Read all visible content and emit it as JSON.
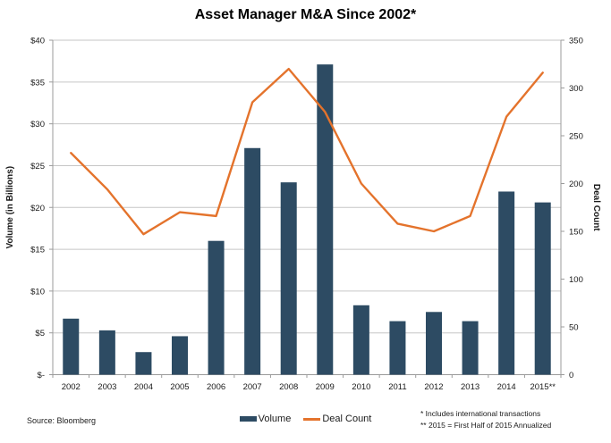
{
  "title": "Asset Manager M&A Since 2002*",
  "colors": {
    "bar": "#2d4b63",
    "line": "#e4732c",
    "grid": "#c6c6c6",
    "axis": "#9b9b9b",
    "text": "#1a1a1a"
  },
  "chart_data": {
    "type": "combo-bar-line",
    "title": "Asset Manager M&A Since 2002*",
    "categories": [
      "2002",
      "2003",
      "2004",
      "2005",
      "2006",
      "2007",
      "2008",
      "2009",
      "2010",
      "2011",
      "2012",
      "2013",
      "2014",
      "2015**"
    ],
    "series": [
      {
        "name": "Volume",
        "type": "bar",
        "axis": "left",
        "values": [
          6.7,
          5.3,
          2.7,
          4.6,
          16.0,
          27.1,
          23.0,
          37.1,
          8.3,
          6.4,
          7.5,
          6.4,
          21.9,
          20.6
        ]
      },
      {
        "name": "Deal Count",
        "type": "line",
        "axis": "right",
        "values": [
          232,
          194,
          147,
          170,
          166,
          285,
          320,
          275,
          200,
          158,
          150,
          166,
          270,
          316
        ]
      }
    ],
    "left_axis": {
      "title": "Volume (in Billions)",
      "min": 0,
      "max": 40,
      "step": 5,
      "tick_labels": [
        "$-",
        "$5",
        "$10",
        "$15",
        "$20",
        "$25",
        "$30",
        "$35",
        "$40"
      ]
    },
    "right_axis": {
      "title": "Deal Count",
      "min": 0,
      "max": 350,
      "step": 50,
      "tick_labels": [
        "0",
        "50",
        "100",
        "150",
        "200",
        "250",
        "300",
        "350"
      ]
    },
    "grid": true,
    "legend_position": "bottom-center"
  },
  "footer": {
    "source": "Source: Bloomberg",
    "notes": [
      "* Includes international transactions",
      "** 2015 = First Half of 2015 Annualized"
    ]
  }
}
